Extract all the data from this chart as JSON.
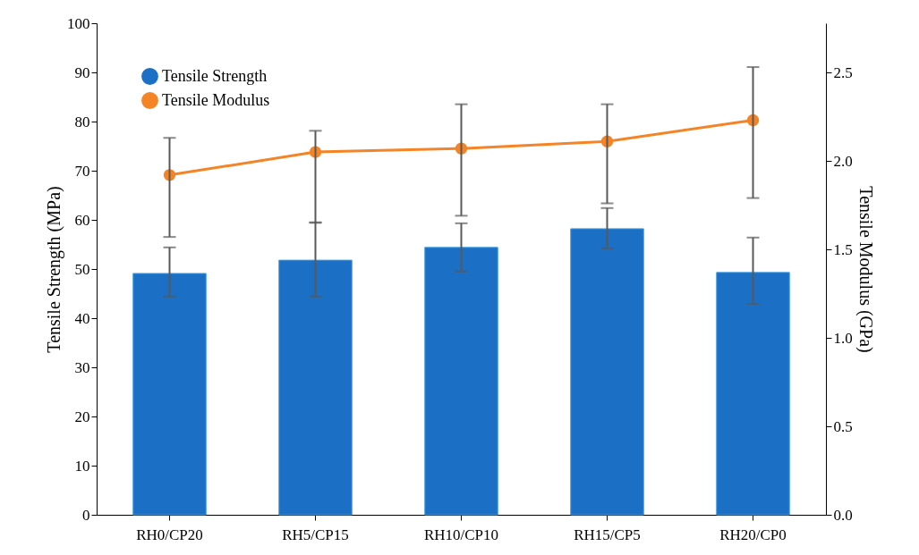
{
  "chart_data": {
    "type": "bar",
    "categories": [
      "RH0/CP20",
      "RH5/CP15",
      "RH10/CP10",
      "RH15/CP5",
      "RH20/CP0"
    ],
    "ylabel": "Tensile Strength (MPa)",
    "y2label": "Tensile Modulus (GPa)",
    "ylim": [
      0,
      100
    ],
    "yticks": [
      0,
      10,
      20,
      30,
      40,
      50,
      60,
      70,
      80,
      90,
      100
    ],
    "y2lim": [
      0,
      2.7778
    ],
    "y2ticks": [
      {
        "value": 0,
        "label": "0.0"
      },
      0.5,
      {
        "value": 1,
        "label": "1.0"
      },
      1.5,
      {
        "value": 2,
        "label": "2.0"
      },
      2.5
    ],
    "series": [
      {
        "name": "Tensile Strength",
        "color": "#1b6fc4",
        "values": [
          49.1,
          51.8,
          54.4,
          58.2,
          49.3
        ],
        "errors": [
          [
            44.4,
            54.4
          ],
          [
            44.4,
            59.5
          ],
          [
            49.5,
            59.3
          ],
          [
            54.2,
            62.4
          ],
          [
            42.9,
            56.4
          ]
        ]
      },
      {
        "name": "Tensile Modulus",
        "type": "line",
        "axis": "y2",
        "color": "#f58426",
        "marker": "circle",
        "values": [
          1.92,
          2.05,
          2.07,
          2.11,
          2.23
        ],
        "errors": [
          [
            1.57,
            2.13
          ],
          [
            1.65,
            2.17
          ],
          [
            1.69,
            2.32
          ],
          [
            1.76,
            2.32
          ],
          [
            1.79,
            2.53
          ]
        ]
      }
    ],
    "legend": "top left",
    "grid": false
  }
}
